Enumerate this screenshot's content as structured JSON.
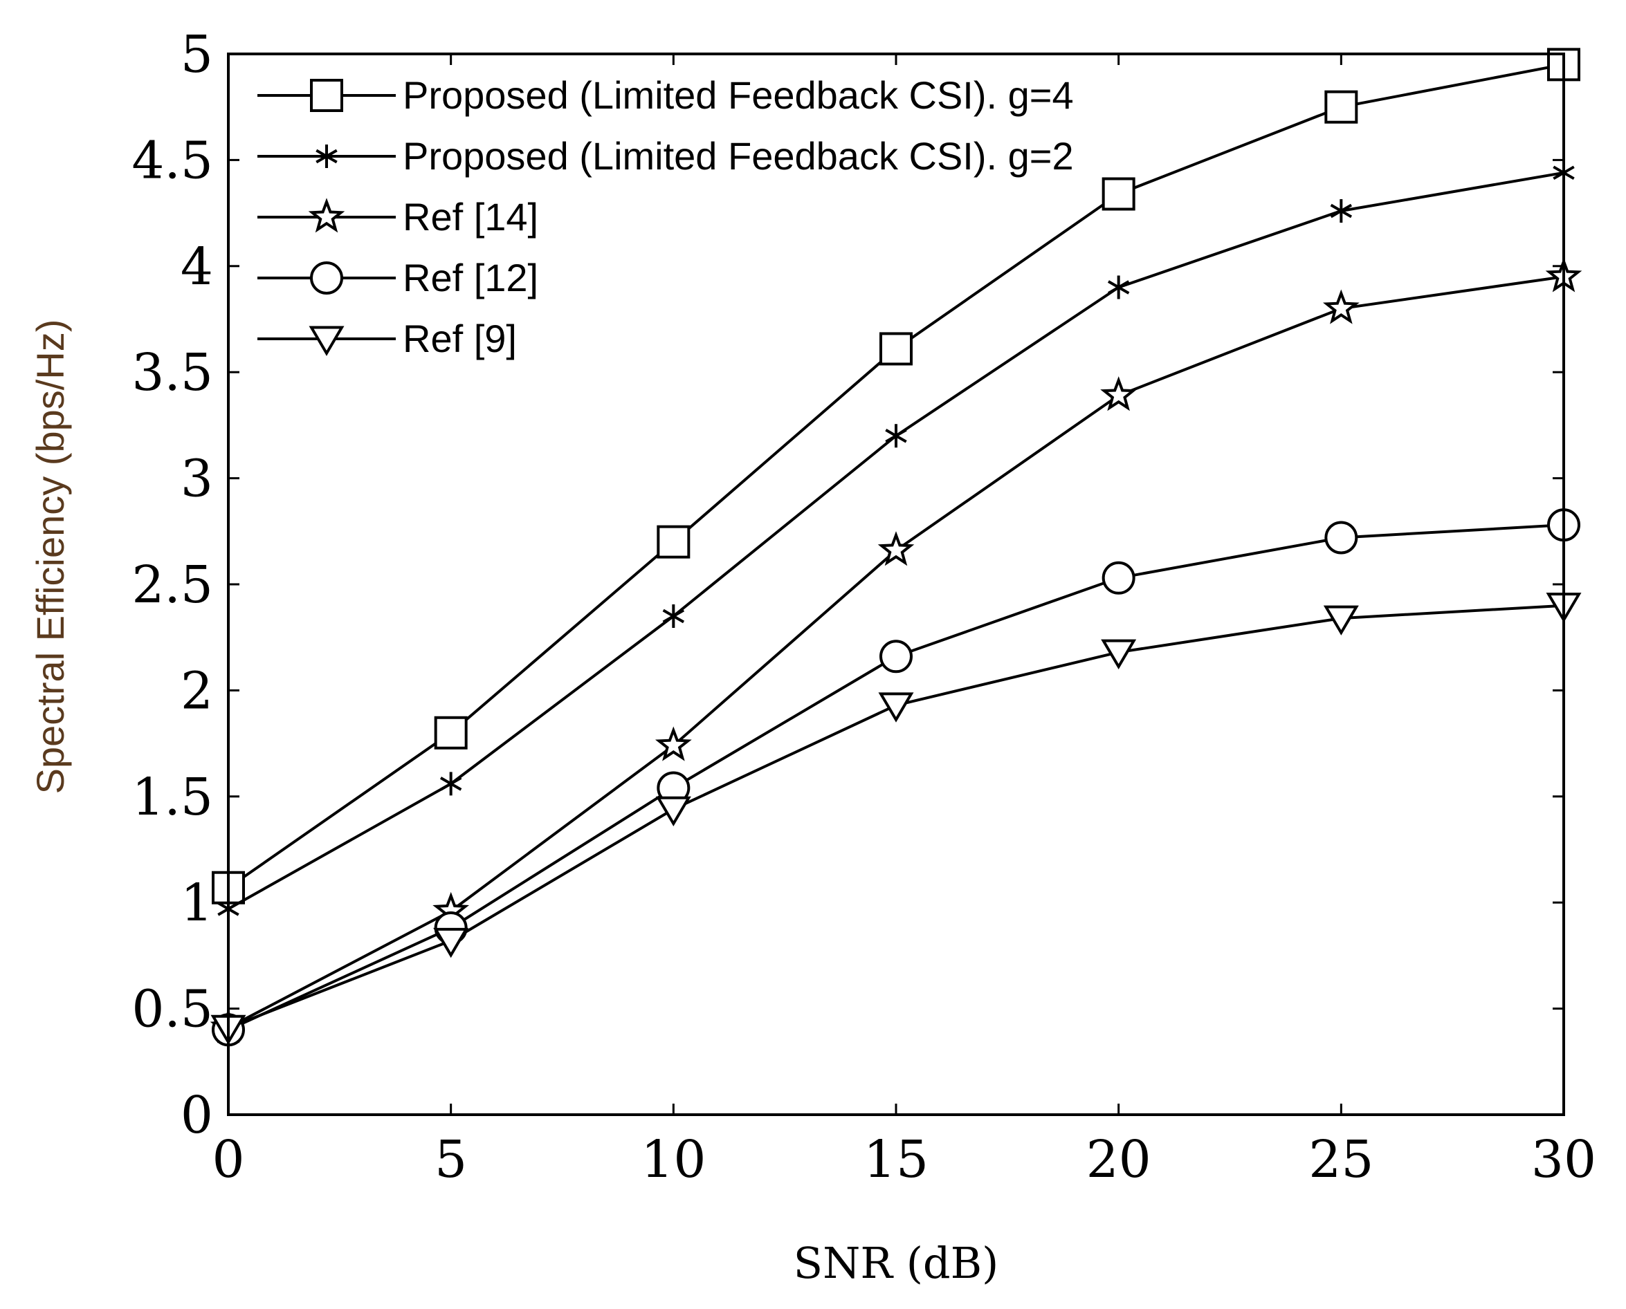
{
  "chart_data": {
    "type": "line",
    "title": "",
    "xlabel": "SNR (dB)",
    "ylabel": "Spectral Efficiency (bps/Hz)",
    "xlim": [
      0,
      30
    ],
    "ylim": [
      0,
      5
    ],
    "xticks": [
      "0",
      "5",
      "10",
      "15",
      "20",
      "25",
      "30"
    ],
    "yticks": [
      "0",
      "0.5",
      "1",
      "1.5",
      "2",
      "2.5",
      "3",
      "3.5",
      "4",
      "4.5",
      "5"
    ],
    "grid": false,
    "legend_position": "top-left",
    "x": [
      0,
      5,
      10,
      15,
      20,
      25,
      30
    ],
    "series": [
      {
        "name": "Proposed (Limited Feedback CSI). g=4",
        "marker": "square",
        "values": [
          1.07,
          1.8,
          2.7,
          3.61,
          4.34,
          4.75,
          4.95
        ]
      },
      {
        "name": "Proposed (Limited Feedback CSI). g=2",
        "marker": "asterisk",
        "values": [
          0.97,
          1.56,
          2.35,
          3.2,
          3.9,
          4.26,
          4.44
        ]
      },
      {
        "name": "Ref [14]",
        "marker": "star",
        "values": [
          0.41,
          0.96,
          1.74,
          2.66,
          3.39,
          3.8,
          3.95
        ]
      },
      {
        "name": "Ref [12]",
        "marker": "circle",
        "values": [
          0.4,
          0.88,
          1.54,
          2.16,
          2.53,
          2.72,
          2.78
        ]
      },
      {
        "name": "Ref [9]",
        "marker": "triangle-down",
        "values": [
          0.41,
          0.82,
          1.44,
          1.93,
          2.18,
          2.34,
          2.4
        ]
      }
    ]
  }
}
